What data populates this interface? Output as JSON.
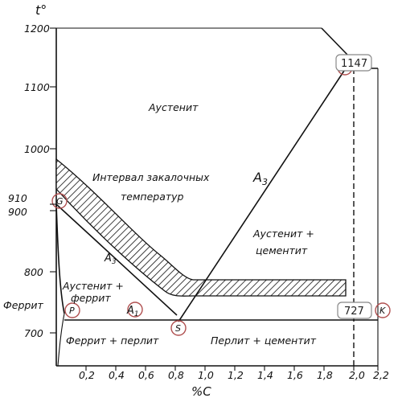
{
  "axes": {
    "y_label": "t°",
    "x_label": "%C",
    "y_ticks": [
      "1200",
      "1100",
      "1000",
      "910",
      "900",
      "800",
      "700"
    ],
    "x_ticks": [
      "0,2",
      "0,4",
      "0,6",
      "0,8",
      "1,0",
      "1,2",
      "1,4",
      "1,6",
      "1,8",
      "2,0",
      "2,2"
    ]
  },
  "regions": {
    "austenite": "Аустенит",
    "quench_interval_line1": "Интервал закалочных",
    "quench_interval_line2": "температур",
    "austenite_cementite_line1": "Аустенит +",
    "austenite_cementite_line2": "цементит",
    "austenite_ferrite_line1": "Аустенит +",
    "austenite_ferrite_line2": "феррит",
    "ferrite": "Феррит",
    "ferrite_pearlite": "Феррит + перлит",
    "pearlite_cementite": "Перлит + цементит"
  },
  "lines": {
    "a3": "A",
    "a3_sub": "3",
    "a3_left": "A",
    "a3_left_sub": "3",
    "a1": "A",
    "a1_sub": "1"
  },
  "points": {
    "E": "E",
    "S": "S",
    "P": "P",
    "K": "K",
    "G": "G"
  },
  "values": {
    "t1147": "1147",
    "t727": "727"
  }
}
